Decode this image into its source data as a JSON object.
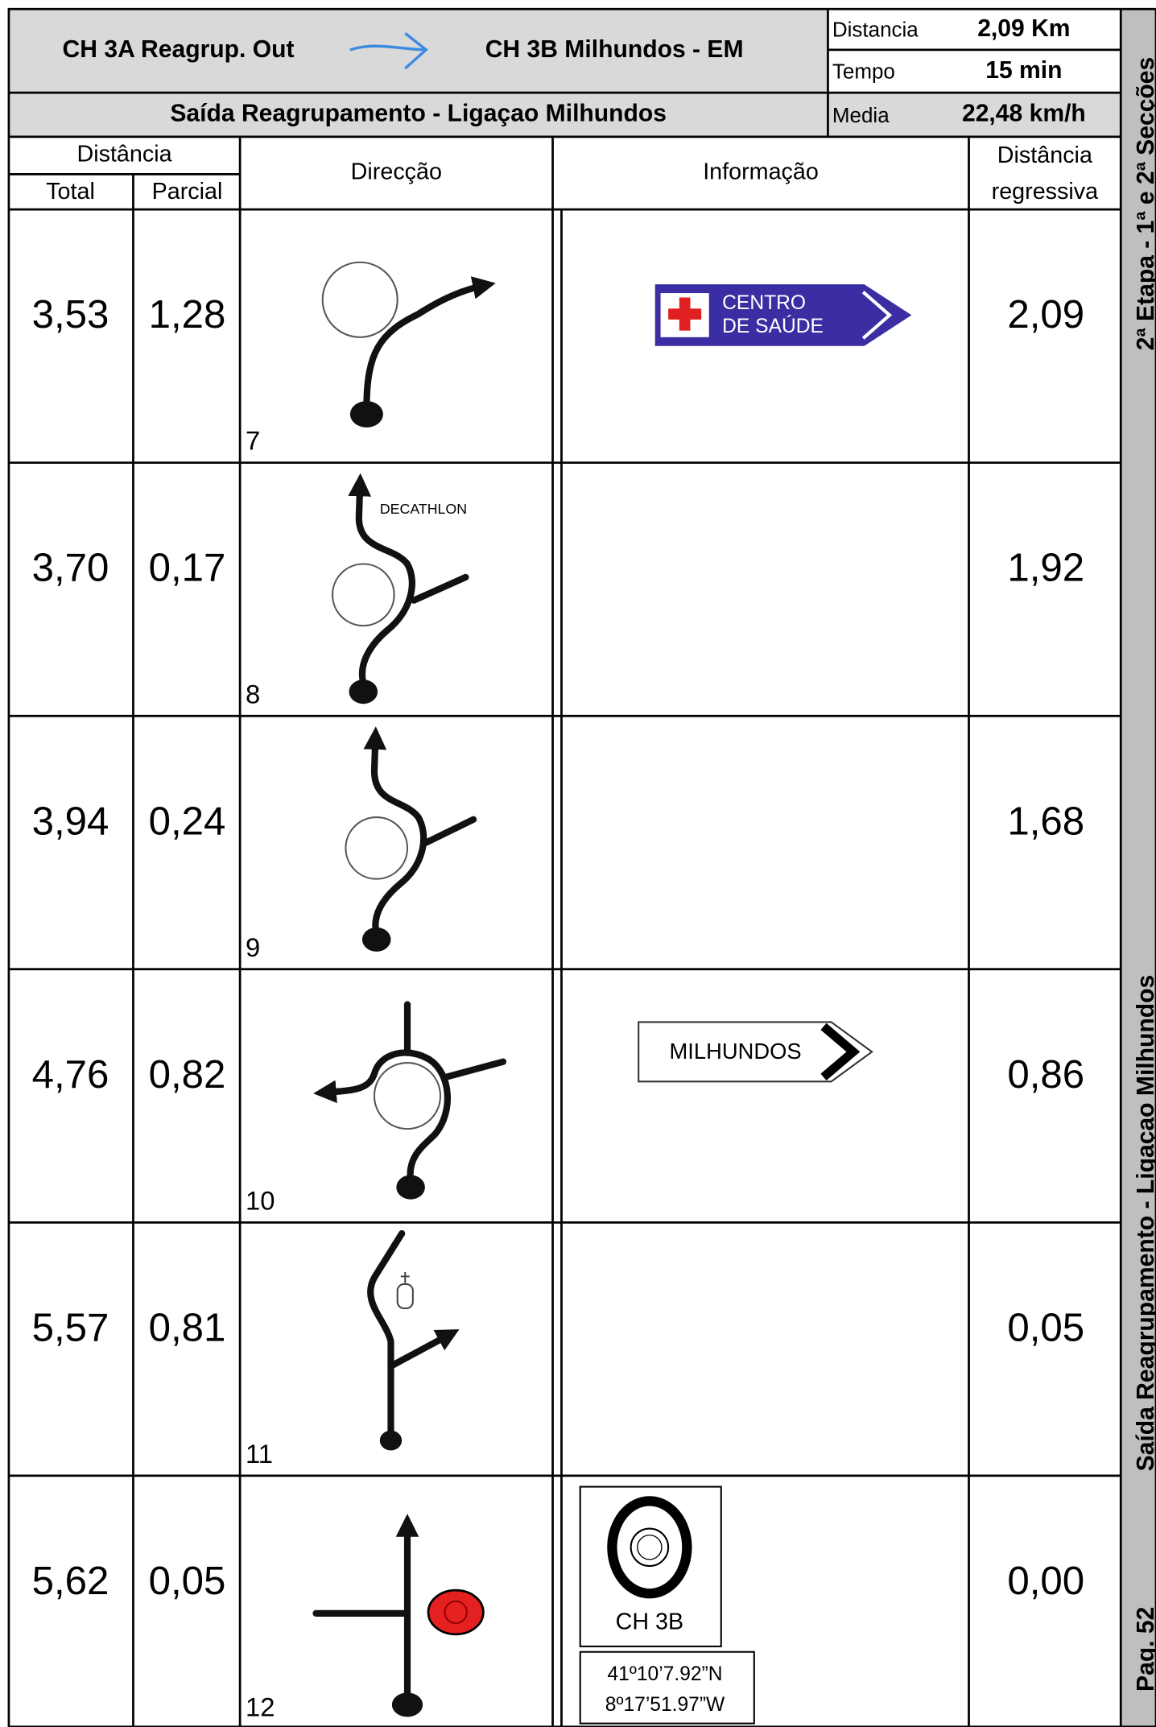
{
  "header": {
    "from": "CH 3A Reagrup. Out",
    "to": "CH 3B Milhundos - EM",
    "subtitle": "Saída Reagrupamento - Ligaçao Milhundos",
    "stats": [
      {
        "label": "Distancia",
        "value": "2,09 Km"
      },
      {
        "label": "Tempo",
        "value": "15 min"
      },
      {
        "label": "Media",
        "value": "22,48 km/h"
      }
    ]
  },
  "columns": {
    "distance": "Distância",
    "total": "Total",
    "partial": "Parcial",
    "direction": "Direcção",
    "information": "Informação",
    "regressive": [
      "Distância",
      "regressiva"
    ]
  },
  "rows": [
    {
      "total": "3,53",
      "partial": "1,28",
      "step": "7",
      "remaining": "2,09",
      "sign": [
        "CENTRO",
        "DE SAÚDE"
      ]
    },
    {
      "total": "3,70",
      "partial": "0,17",
      "step": "8",
      "remaining": "1,92",
      "label": "DECATHLON"
    },
    {
      "total": "3,94",
      "partial": "0,24",
      "step": "9",
      "remaining": "1,68"
    },
    {
      "total": "4,76",
      "partial": "0,82",
      "step": "10",
      "remaining": "0,86",
      "sign": [
        "MILHUNDOS"
      ]
    },
    {
      "total": "5,57",
      "partial": "0,81",
      "step": "11",
      "remaining": "0,05"
    },
    {
      "total": "5,62",
      "partial": "0,05",
      "step": "12",
      "remaining": "0,00",
      "control": "CH 3B",
      "coords": [
        "41º10’7.92”N",
        "8º17’51.97”W"
      ]
    }
  ],
  "sidebar": {
    "stage": "2ª Etapa - 1ª e 2ª Secções",
    "section": "Saída Reagrupamento - Ligaçao Milhundos",
    "page": "Pag. 52"
  }
}
